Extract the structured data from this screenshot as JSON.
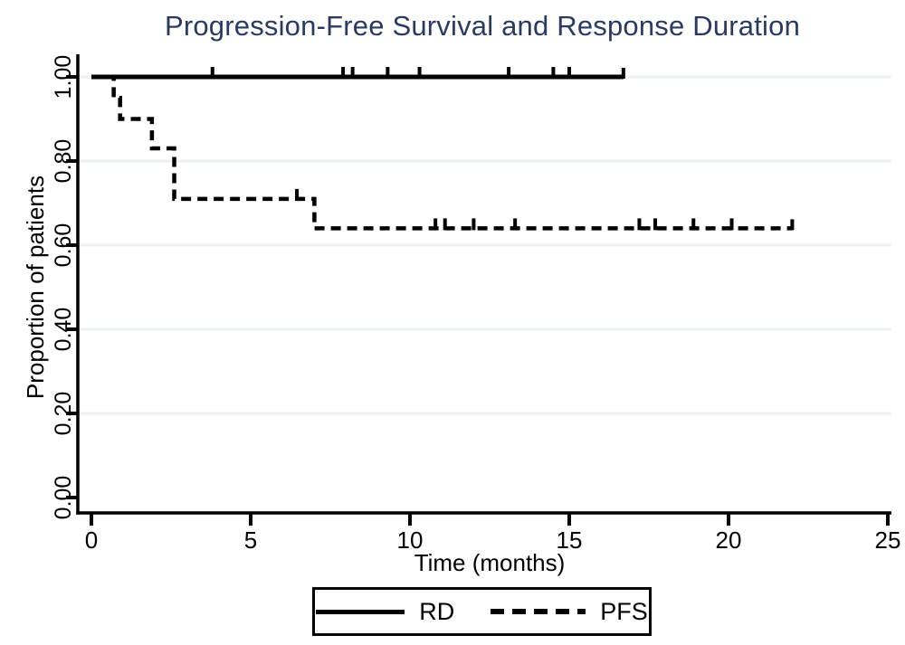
{
  "title": "Progression-Free Survival and Response Duration",
  "colors": {
    "title_text": "#2a3a63",
    "tick_text": "#000000",
    "curve": "#000000",
    "axis": "#000000",
    "grid": "#edf0f0",
    "background": "#ffffff",
    "legend_border": "#000000"
  },
  "legend": {
    "position": "bottom",
    "items": [
      {
        "label": "RD",
        "line": "solid"
      },
      {
        "label": "PFS",
        "line": "dashed"
      }
    ]
  },
  "chart_data": {
    "type": "line",
    "variant": "kaplan-meier-step",
    "title": "Progression-Free Survival and Response Duration",
    "xlabel": "Time (months)",
    "ylabel": "Proportion of patients",
    "xlim": [
      0,
      25
    ],
    "ylim": [
      0.0,
      1.0
    ],
    "grid": true,
    "legend_position": "bottom",
    "xticks": [
      {
        "v": 0,
        "label": "0"
      },
      {
        "v": 5,
        "label": "5"
      },
      {
        "v": 10,
        "label": "10"
      },
      {
        "v": 15,
        "label": "15"
      },
      {
        "v": 20,
        "label": "20"
      },
      {
        "v": 25,
        "label": "25"
      }
    ],
    "yticks": [
      {
        "v": 0.0,
        "label": "0.00"
      },
      {
        "v": 0.2,
        "label": "0.20"
      },
      {
        "v": 0.4,
        "label": "0.40"
      },
      {
        "v": 0.6,
        "label": "0.60"
      },
      {
        "v": 0.8,
        "label": "0.80"
      },
      {
        "v": 1.0,
        "label": "1.00"
      }
    ],
    "series": [
      {
        "name": "PFS",
        "line_style": "dashed",
        "color": "#000000",
        "steps": [
          [
            0.0,
            1.0
          ],
          [
            0.7,
            1.0
          ],
          [
            0.7,
            0.95
          ],
          [
            0.9,
            0.95
          ],
          [
            0.9,
            0.9
          ],
          [
            1.9,
            0.9
          ],
          [
            1.9,
            0.83
          ],
          [
            2.6,
            0.83
          ],
          [
            2.6,
            0.71
          ],
          [
            7.0,
            0.71
          ],
          [
            7.0,
            0.64
          ],
          [
            22.0,
            0.64
          ]
        ],
        "censor_ticks": [
          [
            6.45,
            0.71
          ],
          [
            10.8,
            0.64
          ],
          [
            11.1,
            0.64
          ],
          [
            12.0,
            0.64
          ],
          [
            13.3,
            0.64
          ],
          [
            17.2,
            0.64
          ],
          [
            17.7,
            0.64
          ],
          [
            18.9,
            0.64
          ],
          [
            20.1,
            0.64
          ]
        ],
        "end_tick": [
          22.0,
          0.64
        ]
      },
      {
        "name": "RD",
        "line_style": "solid",
        "color": "#000000",
        "steps": [
          [
            0.0,
            1.0
          ],
          [
            16.7,
            1.0
          ]
        ],
        "censor_ticks": [
          [
            3.8,
            1.0
          ],
          [
            7.9,
            1.0
          ],
          [
            8.2,
            1.0
          ],
          [
            9.3,
            1.0
          ],
          [
            10.3,
            1.0
          ],
          [
            13.1,
            1.0
          ],
          [
            14.5,
            1.0
          ],
          [
            15.0,
            1.0
          ]
        ],
        "end_tick": [
          16.7,
          1.0
        ]
      }
    ]
  }
}
